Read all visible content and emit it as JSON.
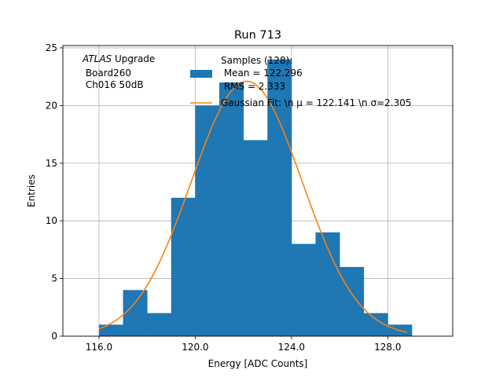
{
  "chart_data": {
    "type": "bar",
    "title": "Run 713",
    "xlabel": "Energy [ADC Counts]",
    "ylabel": "Entries",
    "xlim": [
      114.5,
      130.7
    ],
    "ylim": [
      0,
      25.2
    ],
    "grid": true,
    "x_ticks": [
      116.0,
      120.0,
      124.0,
      128.0
    ],
    "x_tick_labels": [
      "116.0",
      "120.0",
      "124.0",
      "128.0"
    ],
    "y_ticks": [
      0,
      5,
      10,
      15,
      20,
      25
    ],
    "y_tick_labels": [
      "0",
      "5",
      "10",
      "15",
      "20",
      "25"
    ],
    "bin_edges": [
      116,
      117,
      118,
      119,
      120,
      121,
      122,
      123,
      124,
      125,
      126,
      127,
      128,
      129
    ],
    "counts": [
      1,
      4,
      2,
      12,
      20,
      22,
      17,
      24,
      8,
      9,
      6,
      2,
      1
    ],
    "fit": {
      "mu": 122.141,
      "sigma": 2.305,
      "amplitude": 22.1,
      "x_range": [
        116.0,
        128.8
      ]
    },
    "annotation_lines": [
      "ATLAS Upgrade",
      " Board260",
      " Ch016 50dB"
    ],
    "annotation_italic_part": "ATLAS",
    "annotation_rest": " Upgrade",
    "legend": {
      "placement": "top-right",
      "hist_label_lines": [
        "Samples (128):",
        " Mean = 122.296",
        " RMS = 2.333"
      ],
      "fit_label_lines": [
        "Gaussian Fit: \\n μ = 122.141 \\n σ=2.305"
      ]
    },
    "colors": {
      "bar": "#1f77b4",
      "fit": "#ff7f0e",
      "grid": "#b0b0b0"
    }
  }
}
